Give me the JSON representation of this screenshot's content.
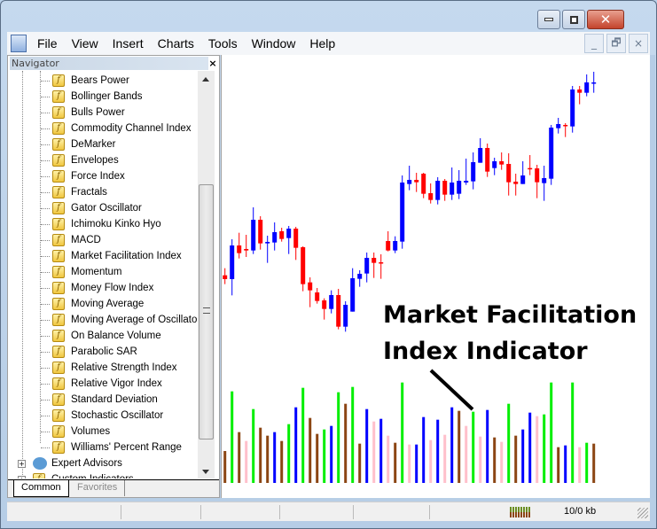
{
  "window": {
    "controls": [
      "minimize",
      "maximize",
      "close"
    ]
  },
  "menu": [
    "File",
    "View",
    "Insert",
    "Charts",
    "Tools",
    "Window",
    "Help"
  ],
  "navigator": {
    "title": "Navigator",
    "items": [
      "Bears Power",
      "Bollinger Bands",
      "Bulls Power",
      "Commodity Channel Index",
      "DeMarker",
      "Envelopes",
      "Force Index",
      "Fractals",
      "Gator Oscillator",
      "Ichimoku Kinko Hyo",
      "MACD",
      "Market Facilitation Index",
      "Momentum",
      "Money Flow Index",
      "Moving Average",
      "Moving Average of Oscillator",
      "On Balance Volume",
      "Parabolic SAR",
      "Relative Strength Index",
      "Relative Vigor Index",
      "Standard Deviation",
      "Stochastic Oscillator",
      "Volumes",
      "Williams' Percent Range"
    ],
    "groups": [
      "Expert Advisors",
      "Custom Indicators"
    ],
    "tabs": [
      "Common",
      "Favorites"
    ],
    "active_tab": "Common"
  },
  "annotation": {
    "line1": "Market Facilitation",
    "line2": "Index Indicator"
  },
  "status": {
    "traffic": "10/0 kb"
  },
  "colors": {
    "bull": "#0000ff",
    "bear": "#ff0000",
    "green": "#00ee00",
    "blue": "#0000ff",
    "brown": "#8b4513",
    "pink": "#ffc0cb"
  },
  "chart_data": {
    "type": "candlestick",
    "candles": [
      [
        278,
        302,
        248,
        265
      ],
      [
        265,
        400,
        210,
        379
      ],
      [
        379,
        422,
        335,
        353
      ],
      [
        367,
        415,
        340,
        362
      ],
      [
        362,
        508,
        350,
        466
      ],
      [
        466,
        478,
        365,
        386
      ],
      [
        386,
        412,
        320,
        391
      ],
      [
        389,
        457,
        362,
        424
      ],
      [
        427,
        439,
        392,
        401
      ],
      [
        404,
        445,
        350,
        436
      ],
      [
        436,
        442,
        330,
        371
      ],
      [
        373,
        376,
        224,
        248
      ],
      [
        254,
        271,
        170,
        227
      ],
      [
        220,
        235,
        182,
        191
      ],
      [
        193,
        200,
        128,
        164
      ],
      [
        164,
        227,
        149,
        211
      ],
      [
        211,
        232,
        95,
        104
      ],
      [
        104,
        190,
        87,
        178
      ],
      [
        155,
        302,
        155,
        268
      ],
      [
        266,
        295,
        239,
        283
      ],
      [
        284,
        355,
        254,
        337
      ],
      [
        337,
        355,
        269,
        320
      ],
      [
        322,
        349,
        266,
        319
      ],
      [
        394,
        427,
        359,
        362
      ],
      [
        362,
        410,
        353,
        394
      ],
      [
        392,
        616,
        368,
        592
      ],
      [
        587,
        649,
        566,
        601
      ],
      [
        601,
        625,
        560,
        593
      ],
      [
        622,
        625,
        539,
        554
      ],
      [
        556,
        589,
        521,
        533
      ],
      [
        533,
        610,
        518,
        598
      ],
      [
        598,
        604,
        530,
        551
      ],
      [
        551,
        643,
        533,
        592
      ],
      [
        554,
        634,
        536,
        598
      ],
      [
        592,
        673,
        584,
        598
      ],
      [
        596,
        694,
        569,
        661
      ],
      [
        659,
        742,
        659,
        709
      ],
      [
        709,
        724,
        611,
        629
      ],
      [
        641,
        676,
        617,
        664
      ],
      [
        664,
        694,
        635,
        653
      ],
      [
        655,
        691,
        548,
        593
      ],
      [
        595,
        622,
        548,
        587
      ],
      [
        587,
        664,
        587,
        616
      ],
      [
        641,
        685,
        617,
        638
      ],
      [
        640,
        652,
        539,
        593
      ],
      [
        590,
        649,
        530,
        607
      ],
      [
        605,
        787,
        584,
        778
      ],
      [
        776,
        811,
        758,
        790
      ],
      [
        787,
        793,
        746,
        783
      ],
      [
        782,
        919,
        761,
        907
      ],
      [
        907,
        919,
        857,
        896
      ],
      [
        896,
        958,
        884,
        931
      ],
      [
        929,
        967,
        896,
        931
      ]
    ],
    "mfi_histogram": {
      "values": [
        108,
        310,
        172,
        142,
        250,
        187,
        160,
        172,
        142,
        199,
        256,
        322,
        220,
        166,
        181,
        193,
        307,
        268,
        325,
        133,
        250,
        208,
        217,
        160,
        136,
        340,
        130,
        130,
        223,
        145,
        214,
        163,
        256,
        244,
        193,
        241,
        157,
        247,
        154,
        139,
        268,
        160,
        181,
        238,
        226,
        232,
        340,
        121,
        127,
        340,
        121,
        136,
        133
      ],
      "colors": [
        "brown",
        "green",
        "brown",
        "pink",
        "green",
        "brown",
        "brown",
        "blue",
        "brown",
        "green",
        "blue",
        "green",
        "brown",
        "brown",
        "green",
        "blue",
        "green",
        "brown",
        "green",
        "brown",
        "blue",
        "pink",
        "blue",
        "pink",
        "brown",
        "green",
        "pink",
        "blue",
        "blue",
        "pink",
        "blue",
        "pink",
        "blue",
        "brown",
        "pink",
        "green",
        "pink",
        "blue",
        "brown",
        "pink",
        "green",
        "brown",
        "blue",
        "blue",
        "pink",
        "green",
        "green",
        "brown",
        "blue",
        "green",
        "pink",
        "green",
        "brown"
      ]
    }
  }
}
